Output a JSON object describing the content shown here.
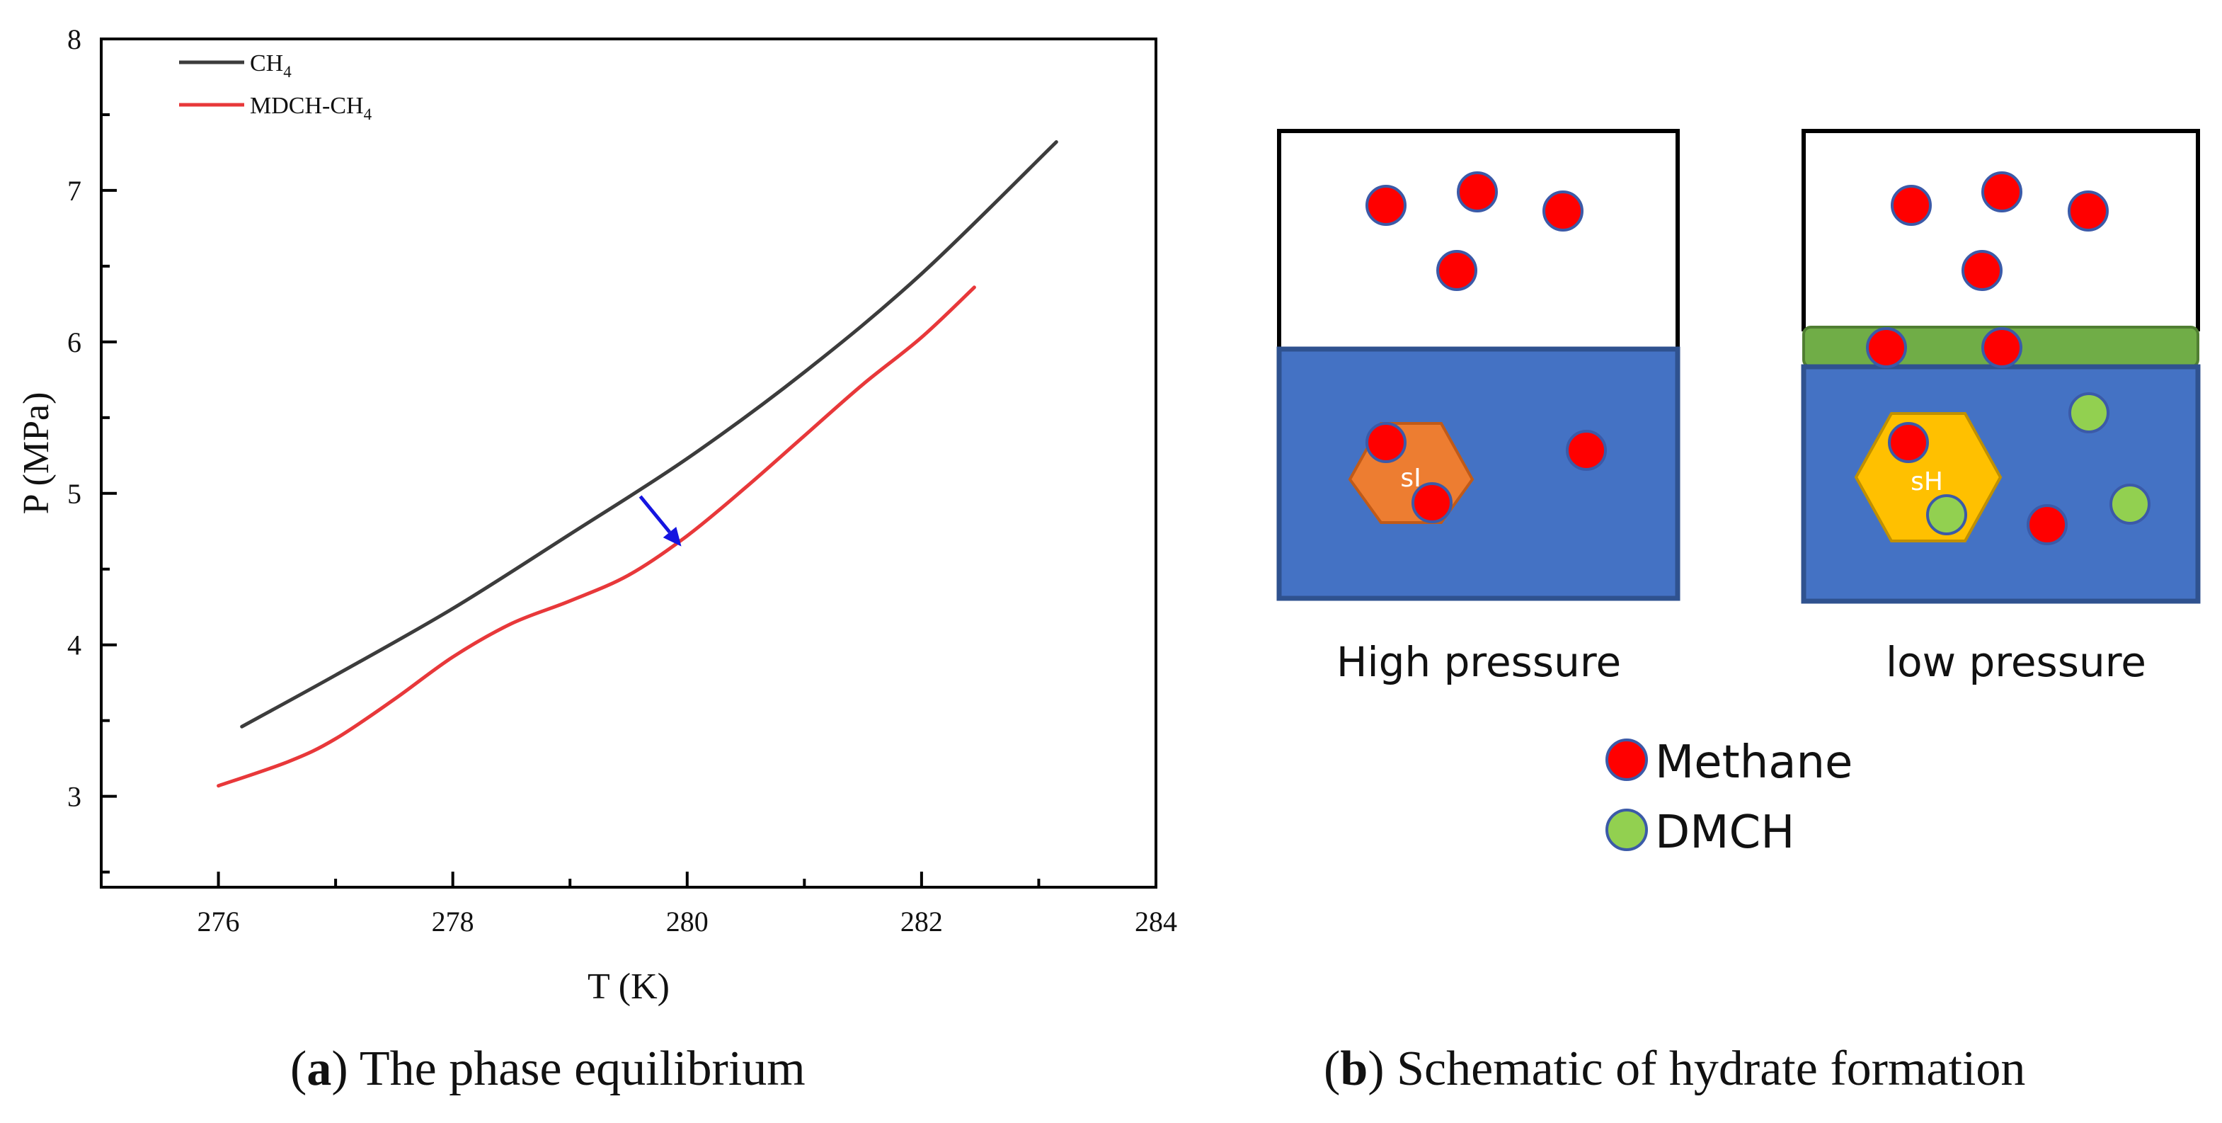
{
  "chart_data": {
    "type": "line",
    "title": "",
    "xlabel": "T (K)",
    "ylabel": "P (MPa)",
    "xlim": [
      275,
      284
    ],
    "ylim": [
      2.4,
      8
    ],
    "xticks": [
      276,
      278,
      280,
      282,
      284
    ],
    "yticks": [
      3,
      4,
      5,
      6,
      7,
      8
    ],
    "grid": false,
    "legend_position": "top-left",
    "series": [
      {
        "name": "CH4",
        "legend_main": "CH",
        "legend_sub": "4",
        "color": "#3c3c3c",
        "x": [
          276.2,
          277.0,
          278.0,
          279.0,
          280.0,
          281.0,
          282.0,
          283.15
        ],
        "y": [
          3.46,
          3.8,
          4.24,
          4.73,
          5.23,
          5.8,
          6.45,
          7.32
        ]
      },
      {
        "name": "MDCH-CH4",
        "legend_main": "MDCH-CH",
        "legend_sub": "4",
        "color": "#e8383a",
        "x": [
          276.0,
          276.6,
          277.0,
          277.5,
          278.0,
          278.5,
          279.0,
          279.5,
          280.0,
          280.5,
          281.0,
          281.5,
          282.0,
          282.45
        ],
        "y": [
          3.07,
          3.23,
          3.38,
          3.64,
          3.92,
          4.14,
          4.29,
          4.46,
          4.72,
          5.04,
          5.38,
          5.72,
          6.03,
          6.36
        ]
      }
    ],
    "annotations": [
      {
        "type": "arrow",
        "color": "#1515e0",
        "from": [
          279.6,
          4.98
        ],
        "to": [
          279.95,
          4.65
        ]
      }
    ]
  },
  "schematic": {
    "panels": [
      {
        "label": "High pressure",
        "cage_label": "sI"
      },
      {
        "label": "low pressure",
        "cage_label": "sH"
      }
    ],
    "legend": [
      {
        "label": "Methane",
        "color": "#ff0000"
      },
      {
        "label": "DMCH",
        "color": "#92d050"
      }
    ],
    "colors": {
      "liquid": "#4472c4",
      "liquid_border": "#2f528f",
      "sI_cage": "#ed7d31",
      "sH_cage": "#ffc000",
      "film": "#70ad47"
    }
  },
  "captions": {
    "a_letter": "a",
    "a_text": " The phase equilibrium",
    "b_letter": "b",
    "b_text": " Schematic of hydrate formation"
  }
}
